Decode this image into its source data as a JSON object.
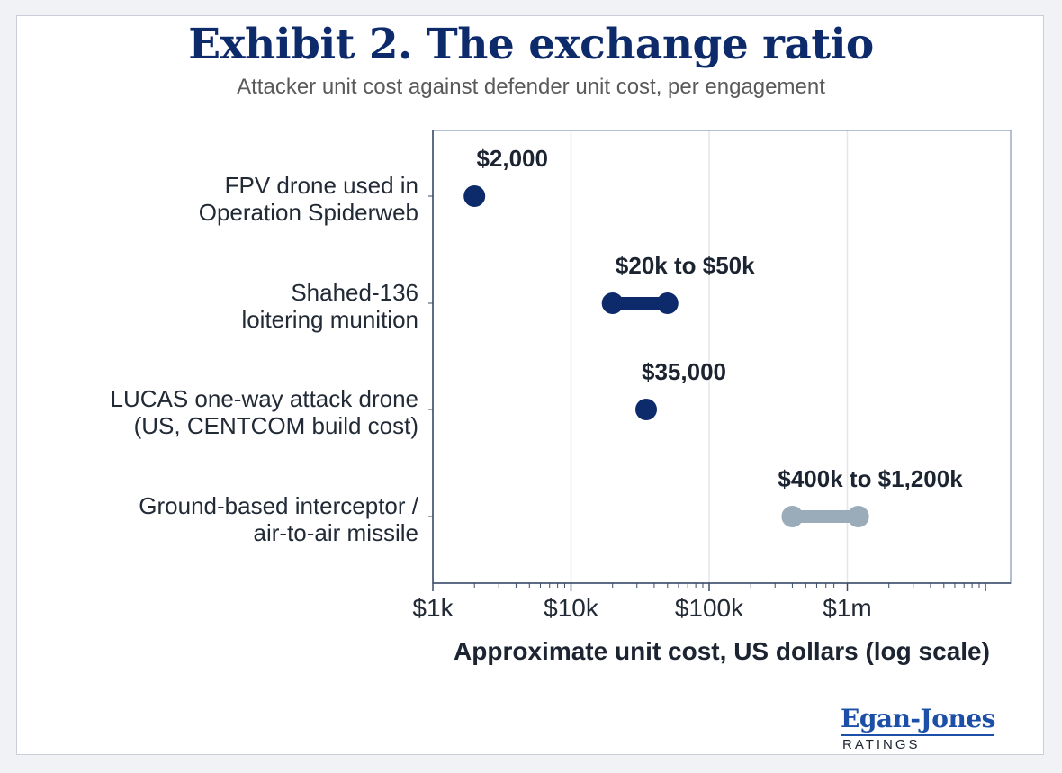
{
  "header": {
    "title": "Exhibit 2. The exchange ratio",
    "subtitle": "Attacker unit cost against defender unit cost, per engagement"
  },
  "colors": {
    "title": "#0d2a6b",
    "attacker": "#0d2a6b",
    "defender": "#9aacba",
    "axis_frame": "#9aaac6",
    "gridline": "#e3e6ea",
    "category_text": "#222a36",
    "value_label": "#1c2431",
    "logo_text": "#1c4fa8",
    "logo_sub": "#1c2431",
    "subtitle": "#5a5a5a"
  },
  "chart_data": {
    "type": "range-dot",
    "title": "Exhibit 2. The exchange ratio",
    "subtitle": "Attacker unit cost against defender unit cost, per engagement",
    "xlabel": "Approximate unit cost, US dollars (log scale)",
    "xscale": "log",
    "xlim": [
      1000,
      10000000
    ],
    "xticks": [
      {
        "value": 1000,
        "label": "$1k"
      },
      {
        "value": 10000,
        "label": "$10k"
      },
      {
        "value": 100000,
        "label": "$100k"
      },
      {
        "value": 1000000,
        "label": "$1m"
      }
    ],
    "grid": true,
    "categories": [
      {
        "label_lines": [
          "FPV drone used in",
          "Operation Spiderweb"
        ],
        "low": 2000,
        "high": 2000,
        "value_label": "$2,000",
        "group": "attacker"
      },
      {
        "label_lines": [
          "Shahed-136",
          "loitering munition"
        ],
        "low": 20000,
        "high": 50000,
        "value_label": "$20k to $50k",
        "group": "attacker"
      },
      {
        "label_lines": [
          "LUCAS one-way attack drone",
          "(US, CENTCOM build cost)"
        ],
        "low": 35000,
        "high": 35000,
        "value_label": "$35,000",
        "group": "attacker"
      },
      {
        "label_lines": [
          "Ground-based interceptor /",
          "air-to-air missile"
        ],
        "low": 400000,
        "high": 1200000,
        "value_label": "$400k to $1,200k",
        "group": "defender"
      }
    ]
  },
  "logo": {
    "name": "Egan-Jones",
    "sub": "RATINGS"
  }
}
